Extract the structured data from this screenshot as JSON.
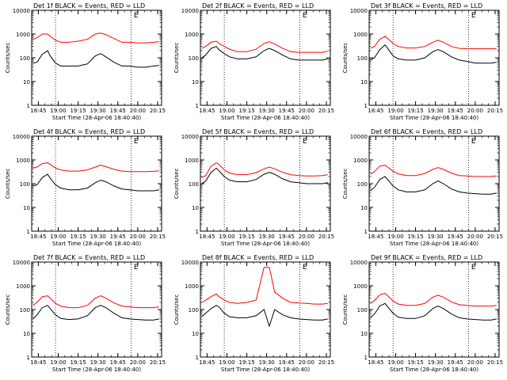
{
  "colors": {
    "events": "#000000",
    "lld": "#ff0000",
    "axes": "#000000"
  },
  "chart_data": [
    {
      "type": "line",
      "title": "Det 1f BLACK = Events, RED = LLD",
      "xlabel": "Start Time (28-Apr-06 18:40:40)",
      "ylabel": "Counts/sec",
      "yscale": "log",
      "ylim": [
        1,
        10000
      ],
      "xtick_labels": [
        "18:45",
        "19:00",
        "19:15",
        "19:30",
        "19:45",
        "20:00",
        "20:15"
      ],
      "ytick_labels": [
        "1",
        "10",
        "100",
        "1000",
        "10000"
      ],
      "vlines": [
        "18:58",
        "19:55"
      ],
      "marker_glyph": "E",
      "marker_time": "19:57",
      "x": [
        "18:41",
        "18:44",
        "18:48",
        "18:52",
        "18:54",
        "18:58",
        "19:02",
        "19:08",
        "19:15",
        "19:22",
        "19:28",
        "19:32",
        "19:36",
        "19:42",
        "19:48",
        "19:54",
        "20:00",
        "20:06",
        "20:12",
        "20:16"
      ],
      "series": [
        {
          "name": "Events",
          "values": [
            60,
            65,
            140,
            200,
            120,
            60,
            45,
            45,
            45,
            55,
            120,
            150,
            110,
            65,
            45,
            45,
            40,
            40,
            45,
            48
          ]
        },
        {
          "name": "LLD",
          "values": [
            600,
            700,
            1000,
            1000,
            800,
            550,
            450,
            450,
            500,
            600,
            1000,
            1100,
            950,
            650,
            450,
            450,
            420,
            420,
            450,
            480
          ]
        }
      ]
    },
    {
      "type": "line",
      "title": "Det 2f BLACK = Events, RED = LLD",
      "xlabel": "Start Time (28-Apr-06 18:40:40)",
      "ylabel": "Counts/sec",
      "yscale": "log",
      "ylim": [
        1,
        10000
      ],
      "xtick_labels": [
        "18:45",
        "19:00",
        "19:15",
        "19:30",
        "19:45",
        "20:00",
        "20:15"
      ],
      "ytick_labels": [
        "1",
        "10",
        "100",
        "1000",
        "10000"
      ],
      "vlines": [
        "18:58",
        "19:55"
      ],
      "marker_glyph": "E",
      "marker_time": "19:57",
      "x": [
        "18:41",
        "18:44",
        "18:48",
        "18:52",
        "18:54",
        "18:58",
        "19:02",
        "19:08",
        "19:15",
        "19:22",
        "19:28",
        "19:32",
        "19:36",
        "19:42",
        "19:48",
        "19:54",
        "20:00",
        "20:06",
        "20:12",
        "20:16"
      ],
      "series": [
        {
          "name": "Events",
          "values": [
            100,
            130,
            250,
            300,
            220,
            150,
            110,
            90,
            90,
            110,
            200,
            250,
            200,
            130,
            90,
            80,
            80,
            80,
            80,
            90
          ]
        },
        {
          "name": "LLD",
          "values": [
            250,
            300,
            450,
            500,
            400,
            300,
            230,
            180,
            180,
            230,
            400,
            480,
            380,
            250,
            180,
            170,
            170,
            170,
            170,
            190
          ]
        }
      ]
    },
    {
      "type": "line",
      "title": "Det 3f BLACK = Events, RED = LLD",
      "xlabel": "Start Time (28-Apr-06 18:40:40)",
      "ylabel": "Counts/sec",
      "yscale": "log",
      "ylim": [
        1,
        10000
      ],
      "xtick_labels": [
        "18:45",
        "19:00",
        "19:15",
        "19:30",
        "19:45",
        "20:00",
        "20:15"
      ],
      "ytick_labels": [
        "1",
        "10",
        "100",
        "1000",
        "10000"
      ],
      "vlines": [
        "18:58",
        "19:55"
      ],
      "marker_glyph": "E",
      "marker_time": "19:57",
      "x": [
        "18:41",
        "18:44",
        "18:48",
        "18:52",
        "18:54",
        "18:58",
        "19:02",
        "19:08",
        "19:15",
        "19:22",
        "19:28",
        "19:32",
        "19:36",
        "19:42",
        "19:48",
        "19:54",
        "20:00",
        "20:06",
        "20:12",
        "20:16"
      ],
      "series": [
        {
          "name": "Events",
          "values": [
            80,
            100,
            220,
            350,
            250,
            120,
            90,
            80,
            80,
            100,
            180,
            220,
            180,
            110,
            80,
            70,
            60,
            60,
            60,
            65
          ]
        },
        {
          "name": "LLD",
          "values": [
            250,
            300,
            600,
            800,
            650,
            400,
            300,
            260,
            260,
            300,
            450,
            550,
            450,
            300,
            250,
            240,
            240,
            240,
            240,
            240
          ]
        }
      ]
    },
    {
      "type": "line",
      "title": "Det 4f BLACK = Events, RED = LLD",
      "xlabel": "Start Time (28-Apr-06 18:40:40)",
      "ylabel": "Counts/sec",
      "yscale": "log",
      "ylim": [
        1,
        10000
      ],
      "xtick_labels": [
        "18:45",
        "19:00",
        "19:15",
        "19:30",
        "19:45",
        "20:00",
        "20:15"
      ],
      "ytick_labels": [
        "1",
        "10",
        "100",
        "1000",
        "10000"
      ],
      "vlines": [
        "18:58",
        "19:55"
      ],
      "marker_glyph": "E",
      "marker_time": "19:57",
      "x": [
        "18:41",
        "18:44",
        "18:48",
        "18:52",
        "18:54",
        "18:58",
        "19:02",
        "19:08",
        "19:15",
        "19:22",
        "19:28",
        "19:32",
        "19:36",
        "19:42",
        "19:48",
        "19:54",
        "20:00",
        "20:06",
        "20:12",
        "20:16"
      ],
      "series": [
        {
          "name": "Events",
          "values": [
            80,
            90,
            180,
            250,
            170,
            90,
            65,
            55,
            55,
            65,
            110,
            140,
            120,
            80,
            60,
            55,
            50,
            50,
            50,
            55
          ]
        },
        {
          "name": "LLD",
          "values": [
            450,
            500,
            700,
            750,
            650,
            450,
            380,
            340,
            340,
            380,
            500,
            600,
            520,
            400,
            340,
            320,
            320,
            320,
            330,
            350
          ]
        }
      ]
    },
    {
      "type": "line",
      "title": "Det 5f BLACK = Events, RED = LLD",
      "xlabel": "Start Time (28-Apr-06 18:40:40)",
      "ylabel": "Counts/sec",
      "yscale": "log",
      "ylim": [
        1,
        10000
      ],
      "xtick_labels": [
        "18:45",
        "19:00",
        "19:15",
        "19:30",
        "19:45",
        "20:00",
        "20:15"
      ],
      "ytick_labels": [
        "1",
        "10",
        "100",
        "1000",
        "10000"
      ],
      "vlines": [
        "18:58",
        "19:55"
      ],
      "marker_glyph": "E",
      "marker_time": "19:57",
      "x": [
        "18:41",
        "18:44",
        "18:48",
        "18:52",
        "18:54",
        "18:58",
        "19:02",
        "19:08",
        "19:15",
        "19:22",
        "19:28",
        "19:32",
        "19:36",
        "19:42",
        "19:48",
        "19:54",
        "20:00",
        "20:06",
        "20:12",
        "20:16"
      ],
      "series": [
        {
          "name": "Events",
          "values": [
            100,
            130,
            300,
            450,
            350,
            200,
            140,
            120,
            120,
            150,
            250,
            300,
            250,
            160,
            120,
            110,
            100,
            100,
            100,
            110
          ]
        },
        {
          "name": "LLD",
          "values": [
            180,
            220,
            550,
            750,
            650,
            380,
            280,
            240,
            240,
            290,
            420,
            500,
            420,
            300,
            240,
            220,
            210,
            210,
            220,
            240
          ]
        }
      ]
    },
    {
      "type": "line",
      "title": "Det 6f BLACK = Events, RED = LLD",
      "xlabel": "Start Time (28-Apr-06 18:40:40)",
      "ylabel": "Counts/sec",
      "yscale": "log",
      "ylim": [
        1,
        10000
      ],
      "xtick_labels": [
        "18:45",
        "19:00",
        "19:15",
        "19:30",
        "19:45",
        "20:00",
        "20:15"
      ],
      "ytick_labels": [
        "1",
        "10",
        "100",
        "1000",
        "10000"
      ],
      "vlines": [
        "18:58",
        "19:55"
      ],
      "marker_glyph": "E",
      "marker_time": "19:57",
      "x": [
        "18:41",
        "18:44",
        "18:48",
        "18:52",
        "18:54",
        "18:58",
        "19:02",
        "19:08",
        "19:15",
        "19:22",
        "19:28",
        "19:32",
        "19:36",
        "19:42",
        "19:48",
        "19:54",
        "20:00",
        "20:06",
        "20:12",
        "20:16"
      ],
      "series": [
        {
          "name": "Events",
          "values": [
            50,
            70,
            150,
            200,
            150,
            80,
            55,
            45,
            45,
            55,
            100,
            130,
            100,
            60,
            45,
            40,
            38,
            36,
            36,
            40
          ]
        },
        {
          "name": "LLD",
          "values": [
            250,
            320,
            550,
            600,
            500,
            330,
            260,
            220,
            220,
            270,
            400,
            480,
            400,
            280,
            220,
            210,
            200,
            200,
            200,
            210
          ]
        }
      ]
    },
    {
      "type": "line",
      "title": "Det 7f BLACK = Events, RED = LLD",
      "xlabel": "Start Time (28-Apr-06 18:40:40)",
      "ylabel": "Counts/sec",
      "yscale": "log",
      "ylim": [
        1,
        10000
      ],
      "xtick_labels": [
        "18:45",
        "19:00",
        "19:15",
        "19:30",
        "19:45",
        "20:00",
        "20:15"
      ],
      "ytick_labels": [
        "1",
        "10",
        "100",
        "1000",
        "10000"
      ],
      "vlines": [
        "18:58",
        "19:55"
      ],
      "marker_glyph": "E",
      "marker_time": "19:57",
      "x": [
        "18:41",
        "18:44",
        "18:48",
        "18:52",
        "18:54",
        "18:58",
        "19:02",
        "19:08",
        "19:15",
        "19:22",
        "19:28",
        "19:32",
        "19:36",
        "19:42",
        "19:48",
        "19:54",
        "20:00",
        "20:06",
        "20:12",
        "20:16"
      ],
      "series": [
        {
          "name": "Events",
          "values": [
            40,
            60,
            120,
            150,
            110,
            60,
            42,
            38,
            40,
            55,
            120,
            150,
            120,
            70,
            45,
            40,
            38,
            36,
            36,
            40
          ]
        },
        {
          "name": "LLD",
          "values": [
            150,
            200,
            350,
            380,
            300,
            180,
            140,
            120,
            120,
            150,
            300,
            380,
            300,
            190,
            140,
            130,
            120,
            120,
            120,
            130
          ]
        }
      ]
    },
    {
      "type": "line",
      "title": "Det 8f BLACK = Events, RED = LLD",
      "xlabel": "Start Time (28-Apr-06 18:40:40)",
      "ylabel": "Counts/sec",
      "yscale": "log",
      "ylim": [
        1,
        10000
      ],
      "xtick_labels": [
        "18:45",
        "19:00",
        "19:15",
        "19:30",
        "19:45",
        "20:00",
        "20:15"
      ],
      "ytick_labels": [
        "1",
        "10",
        "100",
        "1000",
        "10000"
      ],
      "vlines": [
        "18:58",
        "19:55"
      ],
      "marker_glyph": "E",
      "marker_time": "19:57",
      "x": [
        "18:41",
        "18:44",
        "18:48",
        "18:52",
        "18:54",
        "18:58",
        "19:02",
        "19:08",
        "19:15",
        "19:22",
        "19:28",
        "19:32",
        "19:36",
        "19:42",
        "19:48",
        "19:54",
        "20:00",
        "20:06",
        "20:12",
        "20:16"
      ],
      "series": [
        {
          "name": "Events",
          "values": [
            50,
            70,
            110,
            150,
            130,
            70,
            50,
            45,
            45,
            55,
            100,
            20,
            100,
            60,
            45,
            40,
            38,
            36,
            36,
            40
          ]
        },
        {
          "name": "LLD",
          "values": [
            200,
            250,
            350,
            450,
            350,
            250,
            200,
            180,
            200,
            250,
            6000,
            6000,
            550,
            300,
            200,
            190,
            180,
            170,
            170,
            180
          ]
        }
      ]
    },
    {
      "type": "line",
      "title": "Det 9f BLACK = Events, RED = LLD",
      "xlabel": "Start Time (28-Apr-06 18:40:40)",
      "ylabel": "Counts/sec",
      "yscale": "log",
      "ylim": [
        1,
        10000
      ],
      "xtick_labels": [
        "18:45",
        "19:00",
        "19:15",
        "19:30",
        "19:45",
        "20:00",
        "20:15"
      ],
      "ytick_labels": [
        "1",
        "10",
        "100",
        "1000",
        "10000"
      ],
      "vlines": [
        "18:58",
        "19:55"
      ],
      "marker_glyph": "E",
      "marker_time": "19:57",
      "x": [
        "18:41",
        "18:44",
        "18:48",
        "18:52",
        "18:54",
        "18:58",
        "19:02",
        "19:08",
        "19:15",
        "19:22",
        "19:28",
        "19:32",
        "19:36",
        "19:42",
        "19:48",
        "19:54",
        "20:00",
        "20:06",
        "20:12",
        "20:16"
      ],
      "series": [
        {
          "name": "Events",
          "values": [
            45,
            65,
            140,
            180,
            130,
            70,
            48,
            42,
            42,
            55,
            110,
            140,
            110,
            65,
            45,
            40,
            38,
            36,
            36,
            40
          ]
        },
        {
          "name": "LLD",
          "values": [
            180,
            240,
            420,
            480,
            380,
            230,
            170,
            150,
            150,
            180,
            330,
            400,
            330,
            210,
            160,
            150,
            140,
            140,
            140,
            150
          ]
        }
      ]
    }
  ]
}
